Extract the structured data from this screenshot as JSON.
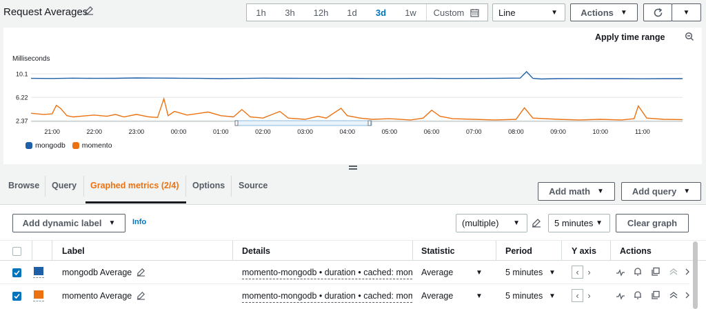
{
  "header": {
    "title": "Request Averages",
    "time_ranges": [
      "1h",
      "3h",
      "12h",
      "1d",
      "3d",
      "1w"
    ],
    "selected_range": "3d",
    "custom_label": "Custom",
    "chart_type": "Line",
    "actions_label": "Actions"
  },
  "chart_panel": {
    "apply_time_range": "Apply time range",
    "unit_label": "Milliseconds"
  },
  "chart_data": {
    "type": "line",
    "ylabel": "Milliseconds",
    "y_ticks": [
      "10.1",
      "6.22",
      "2.37"
    ],
    "ylim": [
      2.37,
      10.1
    ],
    "x_ticks": [
      "21:00",
      "22:00",
      "23:00",
      "00:00",
      "01:00",
      "02:00",
      "03:00",
      "04:00",
      "05:00",
      "06:00",
      "07:00",
      "08:00",
      "09:00",
      "10:00",
      "11:00"
    ],
    "x_start_hours": 20.5,
    "series": [
      {
        "name": "mongodb",
        "color": "#1f5fa8",
        "points": [
          [
            20.5,
            9.35
          ],
          [
            21.0,
            9.33
          ],
          [
            21.5,
            9.38
          ],
          [
            22.0,
            9.35
          ],
          [
            22.5,
            9.36
          ],
          [
            23.0,
            9.42
          ],
          [
            23.5,
            9.4
          ],
          [
            24.0,
            9.37
          ],
          [
            24.5,
            9.35
          ],
          [
            25.0,
            9.3
          ],
          [
            25.5,
            9.34
          ],
          [
            26.0,
            9.38
          ],
          [
            26.5,
            9.36
          ],
          [
            27.0,
            9.35
          ],
          [
            27.5,
            9.34
          ],
          [
            28.0,
            9.35
          ],
          [
            28.5,
            9.33
          ],
          [
            29.0,
            9.32
          ],
          [
            29.5,
            9.34
          ],
          [
            30.0,
            9.35
          ],
          [
            30.5,
            9.33
          ],
          [
            31.0,
            9.34
          ],
          [
            31.5,
            9.35
          ],
          [
            32.1,
            9.4
          ],
          [
            32.25,
            10.45
          ],
          [
            32.4,
            9.35
          ],
          [
            32.6,
            9.25
          ],
          [
            33.0,
            9.3
          ],
          [
            33.5,
            9.32
          ],
          [
            34.0,
            9.3
          ],
          [
            34.5,
            9.3
          ],
          [
            35.0,
            9.28
          ],
          [
            35.5,
            9.3
          ],
          [
            35.95,
            9.3
          ]
        ]
      },
      {
        "name": "momento",
        "color": "#ec7211",
        "points": [
          [
            20.5,
            3.6
          ],
          [
            20.8,
            3.4
          ],
          [
            21.0,
            3.5
          ],
          [
            21.1,
            4.9
          ],
          [
            21.2,
            4.4
          ],
          [
            21.35,
            3.2
          ],
          [
            21.5,
            3.0
          ],
          [
            22.0,
            3.3
          ],
          [
            22.3,
            3.1
          ],
          [
            22.5,
            3.4
          ],
          [
            22.7,
            3.0
          ],
          [
            23.0,
            3.4
          ],
          [
            23.3,
            3.0
          ],
          [
            23.5,
            2.9
          ],
          [
            23.65,
            6.0
          ],
          [
            23.75,
            3.2
          ],
          [
            23.9,
            3.9
          ],
          [
            24.2,
            3.3
          ],
          [
            24.5,
            3.6
          ],
          [
            24.7,
            3.8
          ],
          [
            25.0,
            3.2
          ],
          [
            25.3,
            3.0
          ],
          [
            25.5,
            4.2
          ],
          [
            25.7,
            3.0
          ],
          [
            26.0,
            2.8
          ],
          [
            26.4,
            3.9
          ],
          [
            26.6,
            2.8
          ],
          [
            27.0,
            2.6
          ],
          [
            27.3,
            3.1
          ],
          [
            27.5,
            2.8
          ],
          [
            27.85,
            4.4
          ],
          [
            28.0,
            3.2
          ],
          [
            28.3,
            2.8
          ],
          [
            28.6,
            2.6
          ],
          [
            29.0,
            2.7
          ],
          [
            29.5,
            2.5
          ],
          [
            29.8,
            2.8
          ],
          [
            30.0,
            4.1
          ],
          [
            30.2,
            3.1
          ],
          [
            30.5,
            2.7
          ],
          [
            31.0,
            2.6
          ],
          [
            31.5,
            2.5
          ],
          [
            32.0,
            2.6
          ],
          [
            32.2,
            4.5
          ],
          [
            32.4,
            2.8
          ],
          [
            33.0,
            2.6
          ],
          [
            33.5,
            2.5
          ],
          [
            34.0,
            2.6
          ],
          [
            34.5,
            2.5
          ],
          [
            34.8,
            2.7
          ],
          [
            34.9,
            4.8
          ],
          [
            35.1,
            2.8
          ],
          [
            35.5,
            2.6
          ],
          [
            35.95,
            2.55
          ]
        ]
      }
    ],
    "legend_position": "bottom-left"
  },
  "tabs": [
    {
      "label": "Browse"
    },
    {
      "label": "Query"
    },
    {
      "label": "Graphed metrics (2/4)"
    },
    {
      "label": "Options"
    },
    {
      "label": "Source"
    }
  ],
  "toolbar": {
    "add_math": "Add math",
    "add_query": "Add query",
    "add_dynamic_label": "Add dynamic label",
    "info": "Info",
    "multiple": "(multiple)",
    "period_select": "5 minutes",
    "clear_graph": "Clear graph"
  },
  "table": {
    "headers": {
      "label": "Label",
      "details": "Details",
      "statistic": "Statistic",
      "period": "Period",
      "y_axis": "Y axis",
      "actions": "Actions"
    },
    "rows": [
      {
        "label": "mongodb Average",
        "color": "#1f5fa8",
        "details": "momento-mongodb • duration • cached: mongodb",
        "statistic": "Average",
        "period": "5 minutes"
      },
      {
        "label": "momento Average",
        "color": "#ec7211",
        "details": "momento-mongodb • duration • cached: momento",
        "statistic": "Average",
        "period": "5 minutes"
      }
    ]
  },
  "colors": {
    "accent": "#ec7211",
    "selected_tab": "#0073bb",
    "link": "#0073bb"
  }
}
